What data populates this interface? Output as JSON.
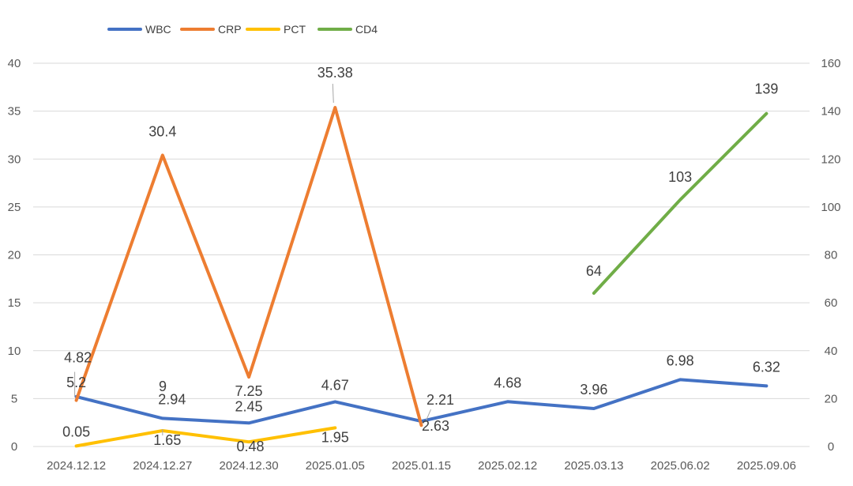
{
  "chart_data": {
    "type": "line",
    "title": "",
    "xlabel": "",
    "ylabel": "",
    "ylim": [
      0,
      40
    ],
    "y_ticks": [
      "0",
      "5",
      "10",
      "15",
      "20",
      "25",
      "30",
      "35",
      "40"
    ],
    "y2lim": [
      0,
      160
    ],
    "y2_ticks": [
      "0",
      "20",
      "40",
      "60",
      "80",
      "100",
      "120",
      "140",
      "160"
    ],
    "grid": true,
    "legend_position": "top-left",
    "categories": [
      "2024.12.12",
      "2024.12.27",
      "2024.12.30",
      "2025.01.05",
      "2025.01.15",
      "2025.02.12",
      "2025.03.13",
      "2025.06.02",
      "2025.09.06"
    ],
    "series": [
      {
        "name": "WBC",
        "axis": "left",
        "color": "#4472c4",
        "values": [
          5.2,
          2.94,
          2.45,
          4.67,
          2.63,
          4.68,
          3.96,
          6.98,
          6.32
        ],
        "labels": [
          "5.2",
          "2.94",
          "2.45",
          "4.67",
          "2.63",
          "4.68",
          "3.96",
          "6.98",
          "6.32"
        ]
      },
      {
        "name": "CRP",
        "axis": "left",
        "color": "#ed7d31",
        "values": [
          4.82,
          30.4,
          7.25,
          35.38,
          2.21,
          null,
          null,
          null,
          null
        ],
        "labels": [
          "4.82",
          "30.4",
          "7.25",
          "35.38",
          "2.21",
          null,
          null,
          null,
          null
        ]
      },
      {
        "name": "PCT",
        "axis": "left",
        "color": "#ffc000",
        "values": [
          0.05,
          1.65,
          0.48,
          1.95,
          null,
          null,
          null,
          null,
          null
        ],
        "labels": [
          "0.05",
          "1.65",
          "0.48",
          "1.95",
          null,
          null,
          null,
          null,
          null
        ]
      },
      {
        "name": "CD4",
        "axis": "right",
        "color": "#70ad47",
        "values": [
          null,
          null,
          null,
          null,
          null,
          null,
          64,
          103,
          139
        ],
        "labels": [
          null,
          null,
          null,
          null,
          null,
          null,
          "64",
          "103",
          "139"
        ]
      }
    ],
    "annotations": [
      {
        "text": "9"
      }
    ]
  }
}
